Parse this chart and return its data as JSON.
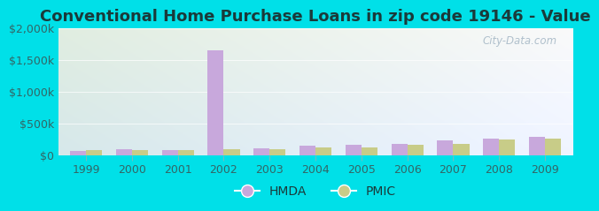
{
  "title": "Conventional Home Purchase Loans in zip code 19146 - Value",
  "years": [
    1999,
    2000,
    2001,
    2002,
    2003,
    2004,
    2005,
    2006,
    2007,
    2008,
    2009
  ],
  "hmda": [
    70000,
    90000,
    80000,
    1650000,
    110000,
    150000,
    165000,
    175000,
    230000,
    265000,
    280000
  ],
  "pmic": [
    72000,
    80000,
    72000,
    88000,
    98000,
    125000,
    120000,
    165000,
    180000,
    240000,
    255000
  ],
  "hmda_color": "#c8a8dc",
  "pmic_color": "#c8cc88",
  "background_outer": "#00e0e8",
  "background_top_left": "#d8eedc",
  "background_top_right": "#e8f4f0",
  "background_bottom": "#d0e8d8",
  "ylim": [
    0,
    2000000
  ],
  "yticks": [
    0,
    500000,
    1000000,
    1500000,
    2000000
  ],
  "ytick_labels": [
    "$0",
    "$500k",
    "$1,000k",
    "$1,500k",
    "$2,000k"
  ],
  "bar_width": 0.35,
  "title_fontsize": 13,
  "tick_fontsize": 9,
  "legend_fontsize": 10,
  "watermark_text": "City-Data.com",
  "watermark_color": "#b0c0cc"
}
